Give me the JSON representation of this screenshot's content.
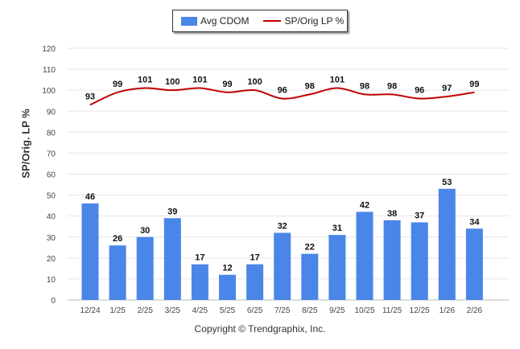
{
  "chart_data": {
    "type": "bar",
    "categories": [
      "12/24",
      "1/25",
      "2/25",
      "3/25",
      "4/25",
      "5/25",
      "6/25",
      "7/25",
      "8/25",
      "9/25",
      "10/25",
      "11/25",
      "12/25",
      "1/26",
      "2/26"
    ],
    "series": [
      {
        "name": "Avg CDOM",
        "type": "bar",
        "color": "#4a86e8",
        "values": [
          46,
          26,
          30,
          39,
          17,
          12,
          17,
          32,
          22,
          31,
          42,
          38,
          37,
          53,
          34
        ]
      },
      {
        "name": "SP/Orig LP %",
        "type": "line",
        "color": "#c00000",
        "values": [
          93,
          99,
          101,
          100,
          101,
          99,
          100,
          96,
          98,
          101,
          98,
          98,
          96,
          97,
          99
        ]
      }
    ],
    "ylabel": "SP/Orig. LP %",
    "ylim": [
      0,
      120
    ],
    "yticks": [
      0,
      10,
      20,
      30,
      40,
      50,
      60,
      70,
      80,
      90,
      100,
      110,
      120
    ],
    "grid": true,
    "legend": "top-center"
  },
  "footer": {
    "copyright": "Copyright © Trendgraphix, Inc."
  }
}
